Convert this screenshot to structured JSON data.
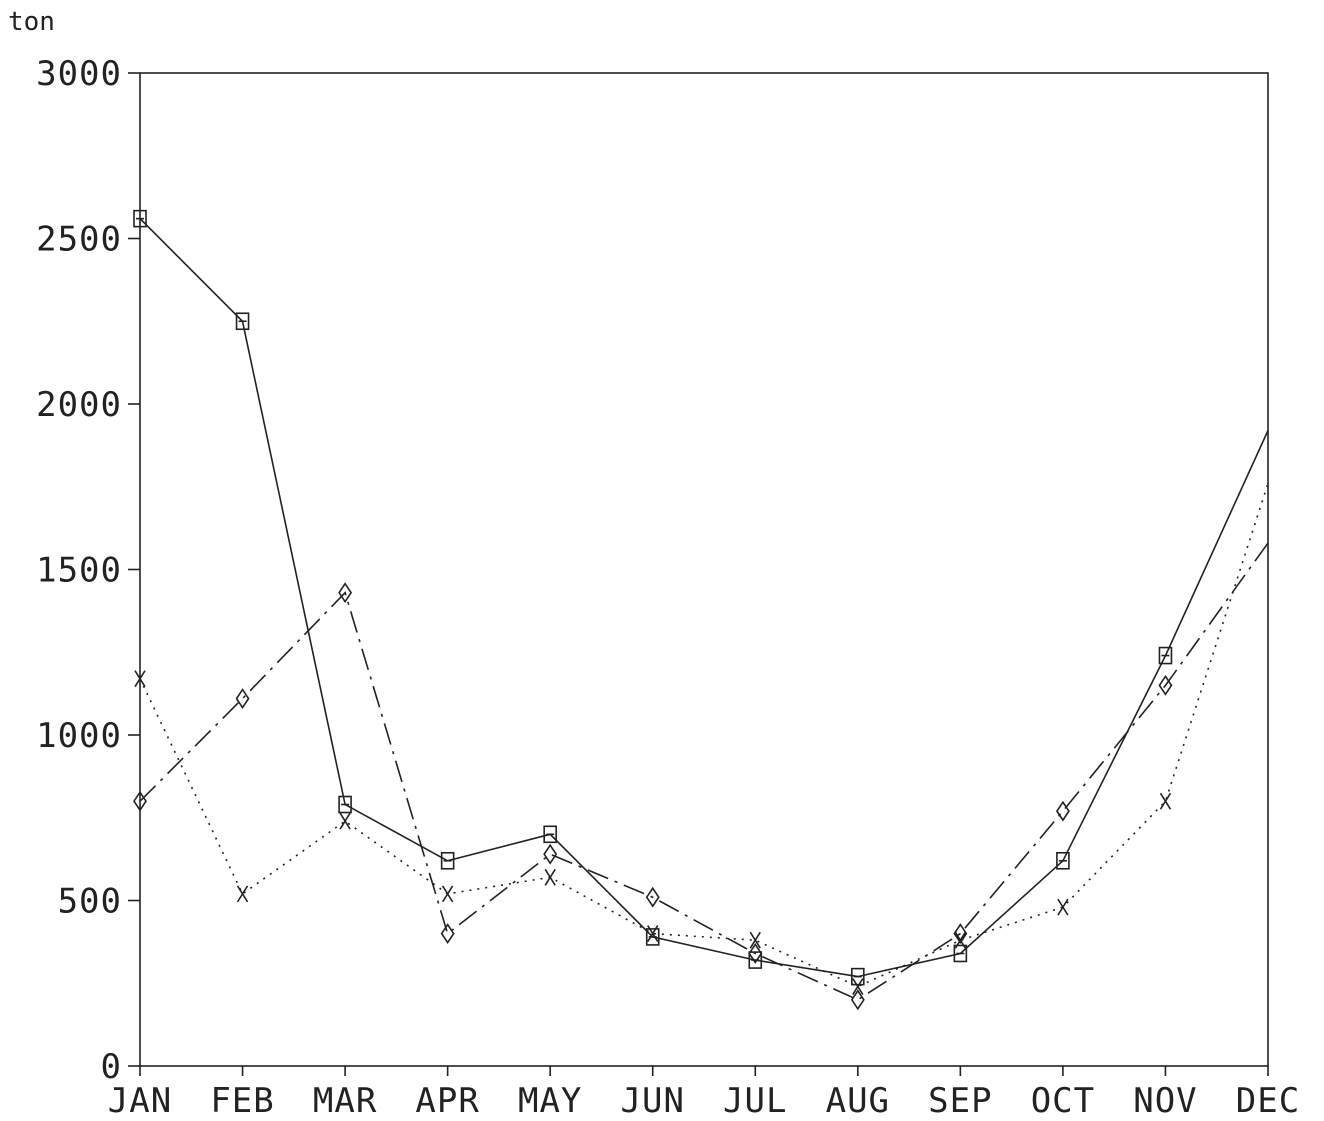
{
  "chart_data": {
    "type": "line",
    "title": "",
    "xlabel": "",
    "ylabel": "",
    "y_unit_label": "ton",
    "categories": [
      "JAN",
      "FEB",
      "MAR",
      "APR",
      "MAY",
      "JUN",
      "JUL",
      "AUG",
      "SEP",
      "OCT",
      "NOV",
      "DEC"
    ],
    "yticks": [
      "0",
      "500",
      "1000",
      "1500",
      "2000",
      "2500",
      "3000"
    ],
    "ylim": [
      0,
      3000
    ],
    "grid": false,
    "legend": "none",
    "series": [
      {
        "marker": "square",
        "line_style": "solid",
        "values": [
          2560,
          2250,
          790,
          620,
          700,
          390,
          320,
          270,
          340,
          620,
          1240,
          1920
        ]
      },
      {
        "marker": "diamond",
        "line_style": "dashdot",
        "values": [
          800,
          1110,
          1430,
          400,
          640,
          510,
          340,
          200,
          400,
          770,
          1150,
          1580
        ]
      },
      {
        "marker": "x",
        "line_style": "dotted",
        "values": [
          1170,
          520,
          740,
          520,
          570,
          400,
          380,
          240,
          380,
          480,
          800,
          1760
        ]
      }
    ],
    "colors": {
      "ink": "#222222",
      "background": "#ffffff"
    }
  }
}
